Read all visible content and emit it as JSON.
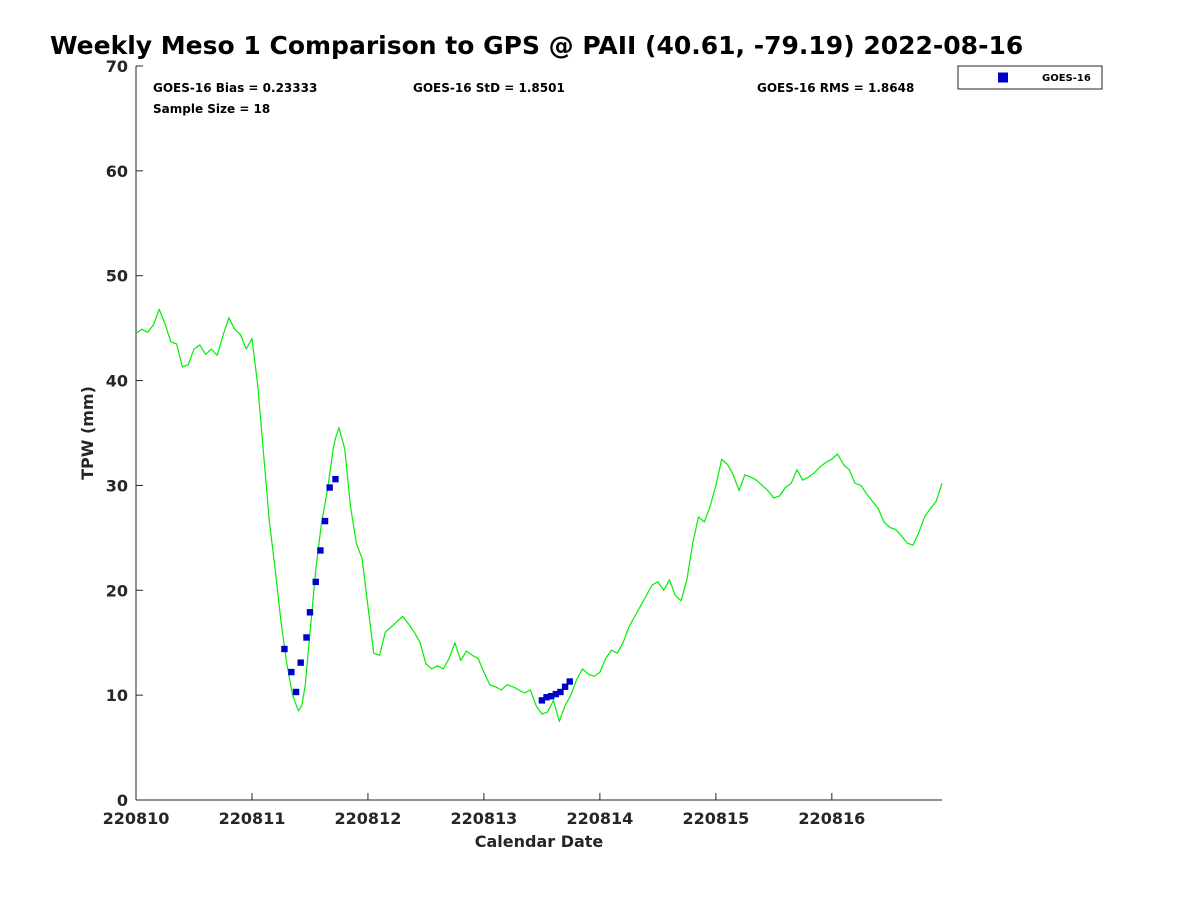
{
  "chart_data": {
    "type": "line",
    "title": "Weekly Meso 1 Comparison to GPS @ PAII (40.61, -79.19) 2022-08-16",
    "xlabel": "Calendar Date",
    "ylabel": "TPW (mm)",
    "xlim": [
      0,
      6.95
    ],
    "ylim": [
      0,
      70
    ],
    "xticks": [
      0,
      1,
      2,
      3,
      4,
      5,
      6
    ],
    "xtick_labels": [
      "220810",
      "220811",
      "220812",
      "220813",
      "220814",
      "220815",
      "220816"
    ],
    "yticks": [
      0,
      10,
      20,
      30,
      40,
      50,
      60,
      70
    ],
    "ytick_labels": [
      "0",
      "10",
      "20",
      "30",
      "40",
      "50",
      "60",
      "70"
    ],
    "grid": false,
    "legend_position": "outside-top-right",
    "legend_entries": [
      "GOES-16"
    ],
    "stats": {
      "bias": "GOES-16 Bias = 0.23333",
      "std": "GOES-16 StD = 1.8501",
      "rms": "GOES-16 RMS = 1.8648",
      "sample": "Sample Size = 18"
    },
    "series": [
      {
        "name": "GPS",
        "style": "line",
        "color": "#00ee00",
        "x": [
          0.0,
          0.05,
          0.1,
          0.15,
          0.2,
          0.25,
          0.3,
          0.35,
          0.4,
          0.45,
          0.5,
          0.55,
          0.6,
          0.65,
          0.7,
          0.75,
          0.8,
          0.85,
          0.9,
          0.95,
          1.0,
          1.05,
          1.1,
          1.15,
          1.2,
          1.25,
          1.3,
          1.35,
          1.4,
          1.43,
          1.46,
          1.5,
          1.55,
          1.6,
          1.65,
          1.7,
          1.72,
          1.75,
          1.8,
          1.85,
          1.9,
          1.95,
          2.0,
          2.05,
          2.1,
          2.15,
          2.2,
          2.25,
          2.3,
          2.35,
          2.4,
          2.45,
          2.5,
          2.55,
          2.6,
          2.65,
          2.7,
          2.75,
          2.8,
          2.85,
          2.9,
          2.95,
          3.0,
          3.05,
          3.1,
          3.15,
          3.2,
          3.25,
          3.3,
          3.35,
          3.4,
          3.45,
          3.5,
          3.55,
          3.6,
          3.65,
          3.7,
          3.75,
          3.8,
          3.85,
          3.9,
          3.95,
          4.0,
          4.05,
          4.1,
          4.15,
          4.2,
          4.25,
          4.3,
          4.35,
          4.4,
          4.45,
          4.5,
          4.55,
          4.6,
          4.65,
          4.7,
          4.75,
          4.8,
          4.85,
          4.9,
          4.95,
          5.0,
          5.05,
          5.1,
          5.15,
          5.2,
          5.25,
          5.3,
          5.35,
          5.4,
          5.45,
          5.5,
          5.55,
          5.6,
          5.65,
          5.7,
          5.75,
          5.8,
          5.85,
          5.9,
          5.95,
          6.0,
          6.05,
          6.1,
          6.15,
          6.2,
          6.25,
          6.3,
          6.35,
          6.4,
          6.45,
          6.5,
          6.55,
          6.6,
          6.65,
          6.7,
          6.75,
          6.8,
          6.85,
          6.9,
          6.95
        ],
        "y": [
          44.5,
          44.9,
          44.6,
          45.3,
          46.8,
          45.4,
          43.7,
          43.5,
          41.3,
          41.5,
          43.0,
          43.4,
          42.5,
          43.0,
          42.4,
          44.3,
          46.0,
          44.9,
          44.4,
          43.0,
          44.0,
          39.5,
          33.0,
          26.5,
          22.0,
          17.0,
          13.0,
          10.0,
          8.5,
          9.0,
          11.0,
          16.0,
          22.0,
          26.5,
          29.5,
          33.5,
          34.5,
          35.5,
          33.5,
          28.0,
          24.5,
          23.0,
          18.5,
          14.0,
          13.8,
          16.0,
          16.5,
          17.0,
          17.5,
          16.8,
          16.0,
          15.0,
          13.0,
          12.5,
          12.8,
          12.5,
          13.5,
          15.0,
          13.3,
          14.2,
          13.8,
          13.5,
          12.2,
          11.0,
          10.8,
          10.5,
          11.0,
          10.8,
          10.5,
          10.2,
          10.5,
          9.0,
          8.2,
          8.4,
          9.5,
          7.5,
          9.0,
          10.0,
          11.5,
          12.5,
          12.0,
          11.8,
          12.2,
          13.5,
          14.3,
          14.0,
          15.0,
          16.5,
          17.5,
          18.5,
          19.5,
          20.5,
          20.8,
          20.0,
          21.0,
          19.5,
          19.0,
          21.0,
          24.5,
          27.0,
          26.5,
          28.0,
          30.0,
          32.5,
          32.0,
          31.0,
          29.5,
          31.0,
          30.8,
          30.5,
          30.0,
          29.5,
          28.8,
          29.0,
          29.8,
          30.2,
          31.5,
          30.5,
          30.8,
          31.2,
          31.8,
          32.2,
          32.5,
          33.0,
          32.0,
          31.5,
          30.2,
          30.0,
          29.2,
          28.5,
          27.8,
          26.5,
          26.0,
          25.8,
          25.2,
          24.5,
          24.3,
          25.5,
          27.0,
          27.8,
          28.5,
          30.2
        ]
      },
      {
        "name": "GOES-16",
        "style": "marker",
        "color": "#0000cc",
        "x": [
          1.28,
          1.34,
          1.38,
          1.42,
          1.47,
          1.5,
          1.55,
          1.59,
          1.63,
          1.67,
          1.72,
          3.5,
          3.54,
          3.58,
          3.62,
          3.66,
          3.7,
          3.74
        ],
        "y": [
          14.4,
          12.2,
          10.3,
          13.1,
          15.5,
          17.9,
          20.8,
          23.8,
          26.6,
          29.8,
          30.6,
          9.5,
          9.8,
          9.9,
          10.1,
          10.3,
          10.8,
          11.3
        ]
      }
    ]
  }
}
